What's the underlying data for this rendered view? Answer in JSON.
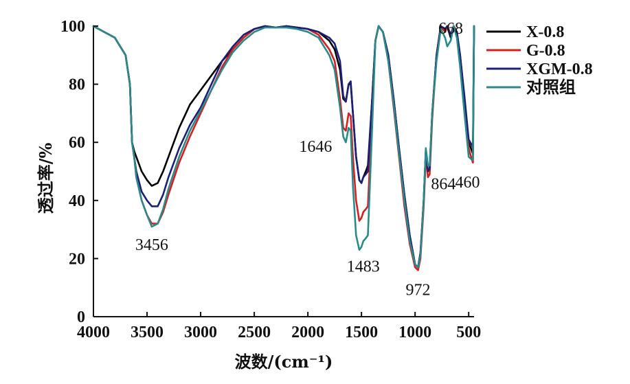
{
  "chart_data": {
    "type": "line",
    "title": "",
    "xlabel": "波数/(cm⁻¹)",
    "ylabel": "透过率/%",
    "xlim": [
      4000,
      450
    ],
    "ylim": [
      0,
      100
    ],
    "x_inverted": true,
    "x_ticks": [
      4000,
      3500,
      3000,
      2500,
      2000,
      1500,
      1000,
      500
    ],
    "y_ticks": [
      0,
      20,
      40,
      60,
      80,
      100
    ],
    "legend_position": "top-right",
    "grid": false,
    "series": [
      {
        "name": "X-0.8",
        "color": "#000000",
        "points": [
          [
            4000,
            100
          ],
          [
            3900,
            98
          ],
          [
            3800,
            96
          ],
          [
            3700,
            90
          ],
          [
            3660,
            80
          ],
          [
            3640,
            60
          ],
          [
            3620,
            57
          ],
          [
            3600,
            55
          ],
          [
            3550,
            50
          ],
          [
            3500,
            47
          ],
          [
            3456,
            45
          ],
          [
            3400,
            46
          ],
          [
            3350,
            50
          ],
          [
            3300,
            55
          ],
          [
            3200,
            65
          ],
          [
            3100,
            73
          ],
          [
            3000,
            78
          ],
          [
            2900,
            83
          ],
          [
            2800,
            88
          ],
          [
            2700,
            92
          ],
          [
            2600,
            96
          ],
          [
            2500,
            99
          ],
          [
            2400,
            100
          ],
          [
            2300,
            99.5
          ],
          [
            2200,
            100
          ],
          [
            2100,
            99.5
          ],
          [
            2000,
            99
          ],
          [
            1900,
            98
          ],
          [
            1800,
            95
          ],
          [
            1750,
            92
          ],
          [
            1700,
            85
          ],
          [
            1670,
            75
          ],
          [
            1646,
            74
          ],
          [
            1620,
            80
          ],
          [
            1600,
            80
          ],
          [
            1580,
            70
          ],
          [
            1550,
            55
          ],
          [
            1520,
            47
          ],
          [
            1500,
            46
          ],
          [
            1483,
            48
          ],
          [
            1460,
            50
          ],
          [
            1440,
            52
          ],
          [
            1400,
            75
          ],
          [
            1370,
            95
          ],
          [
            1340,
            100
          ],
          [
            1300,
            98
          ],
          [
            1250,
            90
          ],
          [
            1200,
            75
          ],
          [
            1150,
            58
          ],
          [
            1100,
            42
          ],
          [
            1050,
            28
          ],
          [
            1000,
            18
          ],
          [
            972,
            17
          ],
          [
            950,
            22
          ],
          [
            920,
            40
          ],
          [
            900,
            57
          ],
          [
            880,
            50
          ],
          [
            864,
            51
          ],
          [
            840,
            70
          ],
          [
            800,
            90
          ],
          [
            760,
            100
          ],
          [
            720,
            98
          ],
          [
            700,
            100
          ],
          [
            668,
            96
          ],
          [
            640,
            100
          ],
          [
            610,
            98
          ],
          [
            580,
            90
          ],
          [
            540,
            75
          ],
          [
            500,
            60
          ],
          [
            470,
            57
          ],
          [
            460,
            56
          ],
          [
            450,
            100
          ]
        ]
      },
      {
        "name": "G-0.8",
        "color": "#d81e1e",
        "points": [
          [
            4000,
            100
          ],
          [
            3900,
            98
          ],
          [
            3800,
            96
          ],
          [
            3700,
            90
          ],
          [
            3660,
            80
          ],
          [
            3640,
            60
          ],
          [
            3620,
            55
          ],
          [
            3600,
            48
          ],
          [
            3550,
            40
          ],
          [
            3500,
            35
          ],
          [
            3456,
            32
          ],
          [
            3400,
            32
          ],
          [
            3350,
            36
          ],
          [
            3300,
            42
          ],
          [
            3200,
            53
          ],
          [
            3100,
            62
          ],
          [
            3000,
            70
          ],
          [
            2900,
            78
          ],
          [
            2800,
            86
          ],
          [
            2700,
            92
          ],
          [
            2600,
            96
          ],
          [
            2500,
            99
          ],
          [
            2400,
            100
          ],
          [
            2300,
            99.5
          ],
          [
            2200,
            100
          ],
          [
            2100,
            99.5
          ],
          [
            2000,
            99
          ],
          [
            1900,
            97
          ],
          [
            1800,
            92
          ],
          [
            1750,
            88
          ],
          [
            1700,
            75
          ],
          [
            1670,
            65
          ],
          [
            1646,
            64
          ],
          [
            1620,
            70
          ],
          [
            1600,
            69
          ],
          [
            1580,
            55
          ],
          [
            1550,
            40
          ],
          [
            1520,
            33
          ],
          [
            1500,
            34
          ],
          [
            1483,
            36
          ],
          [
            1460,
            37
          ],
          [
            1440,
            38
          ],
          [
            1400,
            70
          ],
          [
            1370,
            95
          ],
          [
            1340,
            100
          ],
          [
            1300,
            98
          ],
          [
            1250,
            88
          ],
          [
            1200,
            72
          ],
          [
            1150,
            55
          ],
          [
            1100,
            38
          ],
          [
            1050,
            25
          ],
          [
            1000,
            17
          ],
          [
            972,
            16
          ],
          [
            950,
            20
          ],
          [
            920,
            38
          ],
          [
            900,
            55
          ],
          [
            880,
            48
          ],
          [
            864,
            49
          ],
          [
            840,
            68
          ],
          [
            800,
            90
          ],
          [
            760,
            100
          ],
          [
            720,
            98
          ],
          [
            700,
            100
          ],
          [
            668,
            97
          ],
          [
            640,
            100
          ],
          [
            610,
            97
          ],
          [
            580,
            88
          ],
          [
            540,
            72
          ],
          [
            500,
            58
          ],
          [
            470,
            54
          ],
          [
            460,
            53
          ],
          [
            450,
            100
          ]
        ]
      },
      {
        "name": "XGM-0.8",
        "color": "#1b1f7a",
        "points": [
          [
            4000,
            100
          ],
          [
            3900,
            98
          ],
          [
            3800,
            96
          ],
          [
            3700,
            90
          ],
          [
            3660,
            80
          ],
          [
            3640,
            60
          ],
          [
            3620,
            55
          ],
          [
            3600,
            50
          ],
          [
            3550,
            43
          ],
          [
            3500,
            40
          ],
          [
            3456,
            38
          ],
          [
            3400,
            38
          ],
          [
            3350,
            42
          ],
          [
            3300,
            48
          ],
          [
            3200,
            58
          ],
          [
            3100,
            66
          ],
          [
            3000,
            72
          ],
          [
            2900,
            80
          ],
          [
            2800,
            88
          ],
          [
            2700,
            93
          ],
          [
            2600,
            97
          ],
          [
            2500,
            99
          ],
          [
            2400,
            100
          ],
          [
            2300,
            99.5
          ],
          [
            2200,
            100
          ],
          [
            2100,
            99.5
          ],
          [
            2000,
            99
          ],
          [
            1900,
            98
          ],
          [
            1800,
            96
          ],
          [
            1750,
            94
          ],
          [
            1700,
            88
          ],
          [
            1670,
            76
          ],
          [
            1646,
            74
          ],
          [
            1620,
            80
          ],
          [
            1600,
            81
          ],
          [
            1580,
            70
          ],
          [
            1550,
            55
          ],
          [
            1520,
            47
          ],
          [
            1500,
            46
          ],
          [
            1483,
            48
          ],
          [
            1460,
            49
          ],
          [
            1440,
            50
          ],
          [
            1400,
            75
          ],
          [
            1370,
            95
          ],
          [
            1340,
            100
          ],
          [
            1300,
            98
          ],
          [
            1250,
            90
          ],
          [
            1200,
            75
          ],
          [
            1150,
            58
          ],
          [
            1100,
            42
          ],
          [
            1050,
            28
          ],
          [
            1000,
            18
          ],
          [
            972,
            17
          ],
          [
            950,
            22
          ],
          [
            920,
            40
          ],
          [
            900,
            57
          ],
          [
            880,
            50
          ],
          [
            864,
            51
          ],
          [
            840,
            70
          ],
          [
            800,
            90
          ],
          [
            760,
            100
          ],
          [
            720,
            99
          ],
          [
            700,
            100
          ],
          [
            668,
            97
          ],
          [
            640,
            100
          ],
          [
            610,
            98
          ],
          [
            580,
            90
          ],
          [
            540,
            76
          ],
          [
            500,
            61
          ],
          [
            470,
            59
          ],
          [
            460,
            58
          ],
          [
            450,
            100
          ]
        ]
      },
      {
        "name": "对照组",
        "color": "#2a8a8a",
        "points": [
          [
            4000,
            100
          ],
          [
            3900,
            98
          ],
          [
            3800,
            96
          ],
          [
            3700,
            90
          ],
          [
            3660,
            80
          ],
          [
            3640,
            60
          ],
          [
            3620,
            55
          ],
          [
            3600,
            48
          ],
          [
            3550,
            40
          ],
          [
            3500,
            35
          ],
          [
            3456,
            31
          ],
          [
            3400,
            32
          ],
          [
            3350,
            37
          ],
          [
            3300,
            44
          ],
          [
            3200,
            55
          ],
          [
            3100,
            64
          ],
          [
            3000,
            71
          ],
          [
            2900,
            78
          ],
          [
            2800,
            85
          ],
          [
            2700,
            91
          ],
          [
            2600,
            95
          ],
          [
            2500,
            98
          ],
          [
            2400,
            99.5
          ],
          [
            2300,
            99.5
          ],
          [
            2200,
            99.5
          ],
          [
            2100,
            99
          ],
          [
            2000,
            98
          ],
          [
            1900,
            96
          ],
          [
            1800,
            90
          ],
          [
            1750,
            85
          ],
          [
            1700,
            72
          ],
          [
            1670,
            62
          ],
          [
            1646,
            60
          ],
          [
            1620,
            65
          ],
          [
            1600,
            64
          ],
          [
            1580,
            45
          ],
          [
            1550,
            28
          ],
          [
            1520,
            23
          ],
          [
            1500,
            24
          ],
          [
            1483,
            26
          ],
          [
            1460,
            27
          ],
          [
            1440,
            28
          ],
          [
            1400,
            65
          ],
          [
            1370,
            95
          ],
          [
            1340,
            100
          ],
          [
            1300,
            98
          ],
          [
            1250,
            88
          ],
          [
            1200,
            73
          ],
          [
            1150,
            56
          ],
          [
            1100,
            40
          ],
          [
            1050,
            26
          ],
          [
            1000,
            18
          ],
          [
            972,
            17
          ],
          [
            950,
            21
          ],
          [
            920,
            40
          ],
          [
            900,
            58
          ],
          [
            880,
            52
          ],
          [
            864,
            52
          ],
          [
            840,
            70
          ],
          [
            800,
            88
          ],
          [
            760,
            99
          ],
          [
            720,
            96
          ],
          [
            700,
            93
          ],
          [
            668,
            95
          ],
          [
            640,
            100
          ],
          [
            610,
            96
          ],
          [
            580,
            86
          ],
          [
            540,
            70
          ],
          [
            500,
            55
          ],
          [
            470,
            54
          ],
          [
            460,
            54
          ],
          [
            450,
            100
          ]
        ]
      }
    ],
    "annotations": [
      {
        "text": "3456",
        "x": 3456,
        "y": 31
      },
      {
        "text": "1646",
        "x": 1646,
        "y": 60
      },
      {
        "text": "1483",
        "x": 1483,
        "y": 23
      },
      {
        "text": "972",
        "x": 972,
        "y": 16
      },
      {
        "text": "864",
        "x": 864,
        "y": 49
      },
      {
        "text": "668",
        "x": 668,
        "y": 95
      },
      {
        "text": "460",
        "x": 460,
        "y": 53
      }
    ]
  }
}
